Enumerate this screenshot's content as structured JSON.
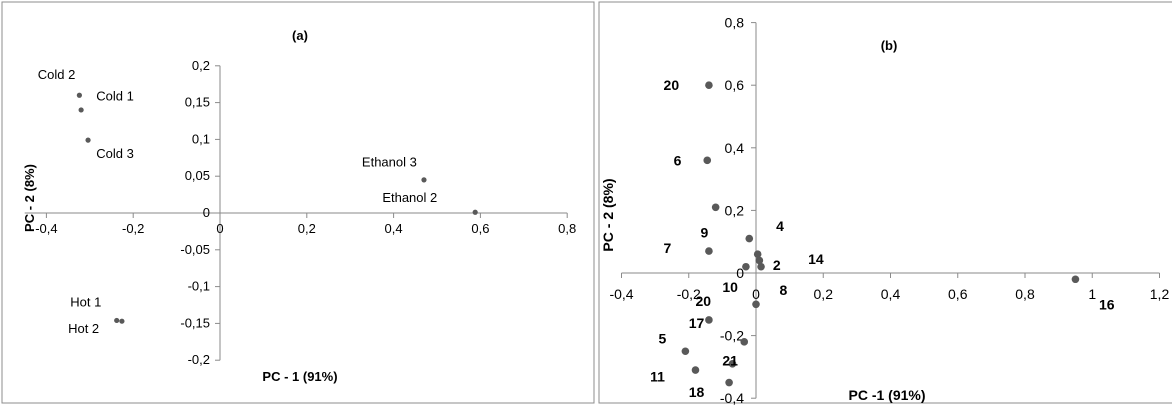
{
  "chart_data": [
    {
      "type": "scatter",
      "title": "(a)",
      "xlabel": "PC - 1 (91%)",
      "ylabel": "PC - 2 (8%)",
      "xlim": [
        -0.45,
        0.8
      ],
      "ylim": [
        -0.2,
        0.2
      ],
      "xticks": [
        -0.4,
        -0.2,
        0,
        0.2,
        0.4,
        0.6,
        0.8
      ],
      "xtick_labels": [
        "-0,4",
        "-0,2",
        "0",
        "0,2",
        "0,4",
        "0,6",
        "0,8"
      ],
      "yticks": [
        0.2,
        0.15,
        0.1,
        0.05,
        0,
        -0.05,
        -0.1,
        -0.15,
        -0.2
      ],
      "ytick_labels": [
        "0,2",
        "0,15",
        "0,1",
        "0,05",
        "0",
        "-0,05",
        "-0,1",
        "-0,15",
        "-0,2"
      ],
      "grid": false,
      "points": [
        {
          "x": -0.324,
          "y": 0.16
        },
        {
          "x": -0.32,
          "y": 0.14
        },
        {
          "x": -0.304,
          "y": 0.099
        },
        {
          "x": 0.47,
          "y": 0.045
        },
        {
          "x": 0.588,
          "y": 0.001
        },
        {
          "x": -0.238,
          "y": -0.146
        },
        {
          "x": -0.226,
          "y": -0.147
        }
      ],
      "point_labels": [
        {
          "text": "Cold 2",
          "x": -0.42,
          "y": 0.182
        },
        {
          "text": "Cold  1",
          "x": -0.285,
          "y": 0.153
        },
        {
          "text": "Cold 3",
          "x": -0.285,
          "y": 0.075
        },
        {
          "text": "Ethanol 3",
          "x": 0.327,
          "y": 0.063
        },
        {
          "text": "Ethanol 2",
          "x": 0.374,
          "y": 0.015
        },
        {
          "text": "Hot 1",
          "x": -0.345,
          "y": -0.127
        },
        {
          "text": "Hot 2",
          "x": -0.35,
          "y": -0.163
        }
      ]
    },
    {
      "type": "scatter",
      "title": "(b)",
      "xlabel": "PC -1 (91%)",
      "ylabel": "PC - 2 (8%)",
      "xlim": [
        -0.4,
        1.2
      ],
      "ylim": [
        -0.4,
        0.8
      ],
      "xticks": [
        -0.4,
        -0.2,
        0,
        0.2,
        0.4,
        0.6,
        0.8,
        1,
        1.2
      ],
      "xtick_labels": [
        "-0,4",
        "-0,2",
        "0",
        "0,2",
        "0,4",
        "0,6",
        "0,8",
        "1",
        "1,2"
      ],
      "yticks": [
        0.8,
        0.6,
        0.4,
        0.2,
        0,
        -0.2,
        -0.4
      ],
      "ytick_labels": [
        "0,8",
        "0,6",
        "0,4",
        "0,2",
        "0",
        "-0,2",
        "-0,4"
      ],
      "grid": false,
      "points": [
        {
          "x": -0.14,
          "y": 0.6
        },
        {
          "x": -0.145,
          "y": 0.36
        },
        {
          "x": -0.12,
          "y": 0.21
        },
        {
          "x": -0.02,
          "y": 0.11
        },
        {
          "x": -0.14,
          "y": 0.07
        },
        {
          "x": 0.005,
          "y": 0.06
        },
        {
          "x": 0.01,
          "y": 0.04
        },
        {
          "x": 0.015,
          "y": 0.02
        },
        {
          "x": -0.03,
          "y": 0.02
        },
        {
          "x": 0.0,
          "y": -0.1
        },
        {
          "x": -0.14,
          "y": -0.15
        },
        {
          "x": -0.035,
          "y": -0.22
        },
        {
          "x": -0.21,
          "y": -0.25
        },
        {
          "x": -0.07,
          "y": -0.29
        },
        {
          "x": -0.18,
          "y": -0.31
        },
        {
          "x": -0.08,
          "y": -0.35
        },
        {
          "x": 0.95,
          "y": -0.02
        }
      ],
      "point_labels": [
        {
          "text": "20",
          "x": -0.275,
          "y": 0.6
        },
        {
          "text": "6",
          "x": -0.245,
          "y": 0.36
        },
        {
          "text": "4",
          "x": 0.06,
          "y": 0.15
        },
        {
          "text": "9",
          "x": -0.165,
          "y": 0.13
        },
        {
          "text": "7",
          "x": -0.275,
          "y": 0.08
        },
        {
          "text": "2",
          "x": 0.05,
          "y": 0.025
        },
        {
          "text": "14",
          "x": 0.155,
          "y": 0.045
        },
        {
          "text": "10",
          "x": -0.1,
          "y": -0.045
        },
        {
          "text": "8",
          "x": 0.07,
          "y": -0.055
        },
        {
          "text": "20",
          "x": -0.18,
          "y": -0.09
        },
        {
          "text": "17",
          "x": -0.2,
          "y": -0.16
        },
        {
          "text": "5",
          "x": -0.29,
          "y": -0.21
        },
        {
          "text": "21",
          "x": -0.1,
          "y": -0.28
        },
        {
          "text": "11",
          "x": -0.315,
          "y": -0.33
        },
        {
          "text": "18",
          "x": -0.2,
          "y": -0.38
        },
        {
          "text": "16",
          "x": 1.02,
          "y": -0.1
        }
      ]
    }
  ]
}
